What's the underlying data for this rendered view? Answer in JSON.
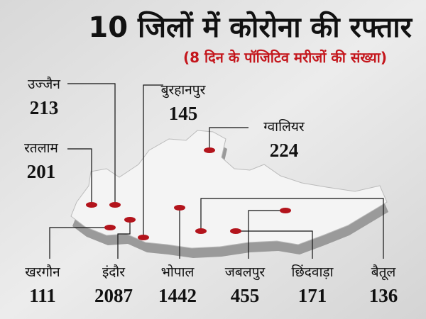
{
  "title": "10 जिलों में कोरोना की रफ्तार",
  "subtitle": "(8 दिन के पॉजिटिव मरीजों की संख्या)",
  "districts": [
    {
      "name": "उज्जैन",
      "value": 213
    },
    {
      "name": "रतलाम",
      "value": 201
    },
    {
      "name": "बुरहानपुर",
      "value": 145
    },
    {
      "name": "ग्वालियर",
      "value": 224
    },
    {
      "name": "खरगौन",
      "value": 111
    },
    {
      "name": "इंदौर",
      "value": 2087
    },
    {
      "name": "भोपाल",
      "value": 1442
    },
    {
      "name": "जबलपुर",
      "value": 455
    },
    {
      "name": "छिंदवाड़ा",
      "value": 171
    },
    {
      "name": "बैतूल",
      "value": 136
    }
  ]
}
